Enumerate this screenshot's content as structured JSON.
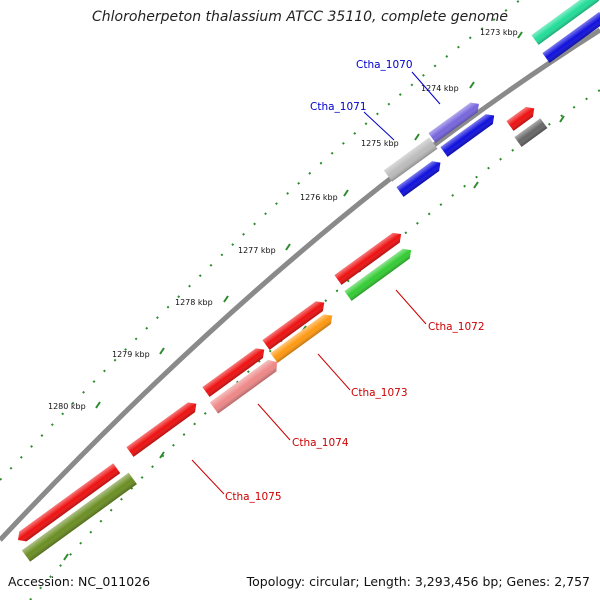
{
  "title": "Chloroherpeton thalassium ATCC 35110, complete genome",
  "footer": {
    "accession": "Accession: NC_011026",
    "stats": "Topology: circular; Length: 3,293,456 bp; Genes: 2,757"
  },
  "ticks": [
    {
      "label": "1273 kbp"
    },
    {
      "label": "1274 kbp"
    },
    {
      "label": "1275 kbp"
    },
    {
      "label": "1276 kbp"
    },
    {
      "label": "1277 kbp"
    },
    {
      "label": "1278 kbp"
    },
    {
      "label": "1279 kbp"
    },
    {
      "label": "1280 kbp"
    }
  ],
  "gene_labels": [
    {
      "text": "Ctha_1070",
      "color": "#0000cc"
    },
    {
      "text": "Ctha_1071",
      "color": "#0000cc"
    },
    {
      "text": "Ctha_1072",
      "color": "#cc0000"
    },
    {
      "text": "Ctha_1073",
      "color": "#cc0000"
    },
    {
      "text": "Ctha_1074",
      "color": "#cc0000"
    },
    {
      "text": "Ctha_1075",
      "color": "#cc0000"
    }
  ],
  "colors": {
    "backbone": "#8a8a8a",
    "dot_track": "#2e8b2e",
    "red_gene": "#ee1111",
    "blue_gene": "#1010dd",
    "green_gene": "#33cc33",
    "orange_gene": "#ff9911",
    "pink_gene": "#ee8888",
    "olive_gene": "#6b8e23",
    "teal_gene": "#22dd99",
    "gray_gene": "#bbbbbb",
    "purple_gene": "#7766dd",
    "dark_gray_gene": "#666666"
  }
}
